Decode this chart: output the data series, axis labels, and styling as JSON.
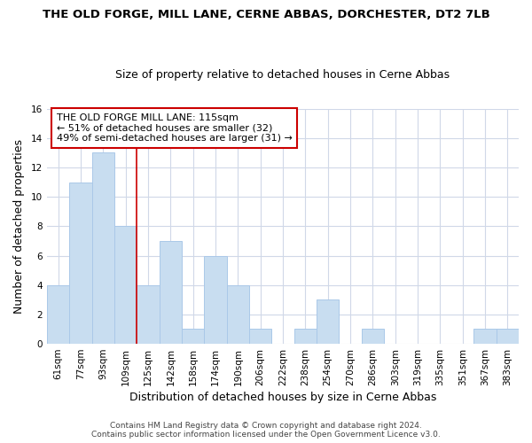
{
  "title": "THE OLD FORGE, MILL LANE, CERNE ABBAS, DORCHESTER, DT2 7LB",
  "subtitle": "Size of property relative to detached houses in Cerne Abbas",
  "xlabel": "Distribution of detached houses by size in Cerne Abbas",
  "ylabel": "Number of detached properties",
  "bar_color": "#c8ddf0",
  "bar_edgecolor": "#aac8e8",
  "bin_labels": [
    "61sqm",
    "77sqm",
    "93sqm",
    "109sqm",
    "125sqm",
    "142sqm",
    "158sqm",
    "174sqm",
    "190sqm",
    "206sqm",
    "222sqm",
    "238sqm",
    "254sqm",
    "270sqm",
    "286sqm",
    "303sqm",
    "319sqm",
    "335sqm",
    "351sqm",
    "367sqm",
    "383sqm"
  ],
  "bar_heights": [
    4,
    11,
    13,
    8,
    4,
    7,
    1,
    6,
    4,
    1,
    0,
    1,
    3,
    0,
    1,
    0,
    0,
    0,
    0,
    1,
    1
  ],
  "ylim": [
    0,
    16
  ],
  "yticks": [
    0,
    2,
    4,
    6,
    8,
    10,
    12,
    14,
    16
  ],
  "reference_line_color": "#cc0000",
  "reference_line_bin_idx": 3,
  "annotation_title": "THE OLD FORGE MILL LANE: 115sqm",
  "annotation_line2": "← 51% of detached houses are smaller (32)",
  "annotation_line3": "49% of semi-detached houses are larger (31) →",
  "annotation_box_edgecolor": "#cc0000",
  "footer_text": "Contains HM Land Registry data © Crown copyright and database right 2024.\nContains public sector information licensed under the Open Government Licence v3.0.",
  "background_color": "#ffffff",
  "grid_color": "#d0d8e8",
  "title_fontsize": 9.5,
  "subtitle_fontsize": 9,
  "axis_label_fontsize": 9,
  "tick_fontsize": 7.5
}
